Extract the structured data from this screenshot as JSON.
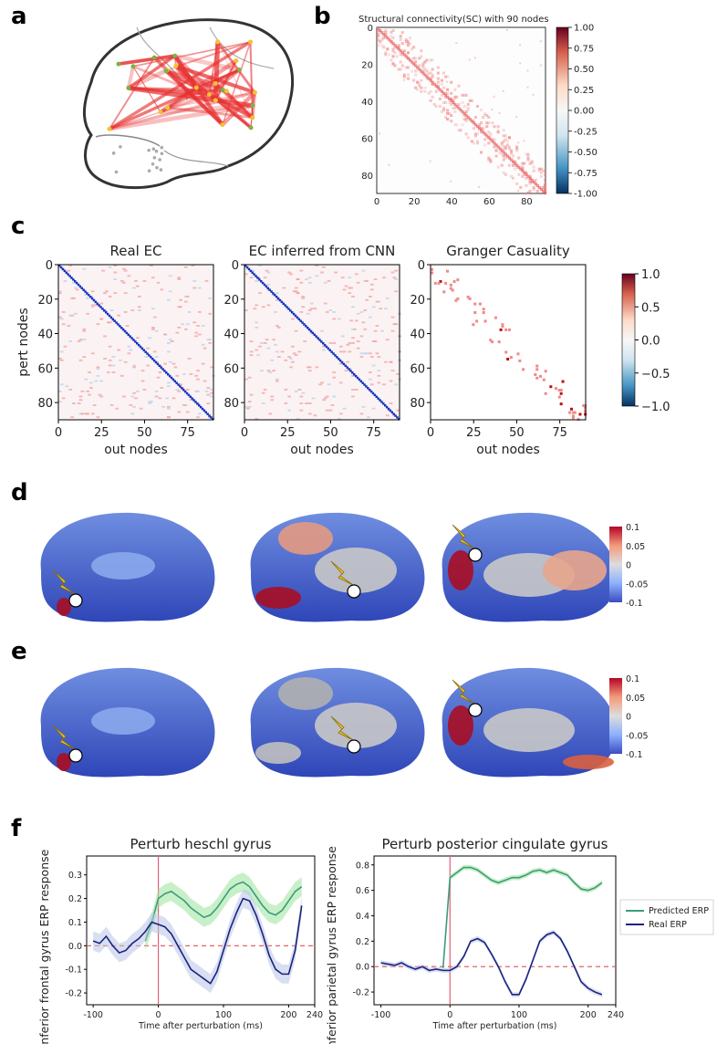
{
  "panels": {
    "a": "a",
    "b": "b",
    "c": "c",
    "d": "d",
    "e": "e",
    "f": "f"
  },
  "panel_b": {
    "title": "Structural connectivity(SC) with 90 nodes",
    "ticks": [
      "0",
      "20",
      "40",
      "60",
      "80"
    ],
    "colorbar_ticks": [
      "1.00",
      "0.75",
      "0.50",
      "0.25",
      "0.00",
      "-0.25",
      "-0.50",
      "-0.75",
      "-1.00"
    ]
  },
  "panel_c": {
    "titles": [
      "Real EC",
      "EC inferred from CNN",
      "Granger Casuality"
    ],
    "ylabel": "pert nodes",
    "xlabel": "out nodes",
    "yticks": [
      "0",
      "20",
      "40",
      "60",
      "80"
    ],
    "xticks": [
      "0",
      "25",
      "50",
      "75"
    ],
    "colorbar_ticks": [
      "1.0",
      "0.5",
      "0.0",
      "−0.5",
      "−1.0"
    ]
  },
  "panel_de": {
    "colorbar_ticks": [
      "0.1",
      "0.05",
      "0",
      "-0.05",
      "-0.1"
    ]
  },
  "colors": {
    "predicted": "#3c9c7a",
    "predicted_band": "#9be39b",
    "real": "#1a237e",
    "real_band": "#b9c4e8",
    "perturb_line": "#e06078",
    "zero_line": "#e05050"
  },
  "chart_data": [
    {
      "type": "line",
      "title": "Perturb heschl gyrus",
      "xlabel": "Time after perturbation (ms)",
      "ylabel": "Inferior frontal gyrus ERP response",
      "xlim": [
        -110,
        240
      ],
      "ylim": [
        -0.25,
        0.38
      ],
      "xticks": [
        -100,
        0,
        100,
        200,
        240
      ],
      "xtick_labels": [
        "-100",
        "0",
        "100",
        "200",
        "240"
      ],
      "yticks": [
        -0.2,
        -0.1,
        0.0,
        0.1,
        0.2,
        0.3
      ],
      "ytick_labels": [
        "-0.2",
        "-0.1",
        "0.0",
        "0.1",
        "0.2",
        "0.3"
      ],
      "x": [
        -100,
        -90,
        -80,
        -70,
        -60,
        -50,
        -40,
        -30,
        -20,
        -10,
        0,
        10,
        20,
        30,
        40,
        50,
        60,
        70,
        80,
        90,
        100,
        110,
        120,
        130,
        140,
        150,
        160,
        170,
        180,
        190,
        200,
        210,
        220
      ],
      "series": [
        {
          "name": "Predicted ERP",
          "values": [
            null,
            null,
            null,
            null,
            null,
            null,
            null,
            null,
            0.02,
            0.1,
            0.2,
            0.22,
            0.23,
            0.21,
            0.19,
            0.16,
            0.14,
            0.12,
            0.13,
            0.16,
            0.2,
            0.24,
            0.26,
            0.27,
            0.25,
            0.21,
            0.17,
            0.14,
            0.13,
            0.15,
            0.19,
            0.23,
            0.25
          ],
          "band": 0.04
        },
        {
          "name": "Real ERP",
          "values": [
            0.02,
            0.01,
            0.04,
            0.0,
            -0.03,
            -0.02,
            0.01,
            0.03,
            0.06,
            0.1,
            0.09,
            0.08,
            0.05,
            0.0,
            -0.05,
            -0.1,
            -0.12,
            -0.14,
            -0.16,
            -0.11,
            -0.02,
            0.07,
            0.14,
            0.2,
            0.19,
            0.13,
            0.05,
            -0.04,
            -0.1,
            -0.12,
            -0.12,
            -0.02,
            0.17
          ],
          "band": 0.04
        }
      ],
      "zero_line": 0.0,
      "perturbation_at": 0
    },
    {
      "type": "line",
      "title": "Perturb posterior cingulate gyrus",
      "xlabel": "Time after perturbation (ms)",
      "ylabel": "Inferior parietal gyrus ERP response",
      "xlim": [
        -110,
        240
      ],
      "ylim": [
        -0.3,
        0.87
      ],
      "xticks": [
        -100,
        0,
        100,
        200,
        240
      ],
      "xtick_labels": [
        "-100",
        "0",
        "100",
        "200",
        "240"
      ],
      "yticks": [
        -0.2,
        0.0,
        0.2,
        0.4,
        0.6,
        0.8
      ],
      "ytick_labels": [
        "-0.2",
        "0.0",
        "0.2",
        "0.4",
        "0.6",
        "0.8"
      ],
      "legend": [
        "Predicted ERP",
        "Real ERP"
      ],
      "x": [
        -100,
        -90,
        -80,
        -70,
        -60,
        -50,
        -40,
        -30,
        -20,
        -10,
        0,
        10,
        20,
        30,
        40,
        50,
        60,
        70,
        80,
        90,
        100,
        110,
        120,
        130,
        140,
        150,
        160,
        170,
        180,
        190,
        200,
        210,
        220
      ],
      "series": [
        {
          "name": "Predicted ERP",
          "values": [
            null,
            null,
            null,
            null,
            null,
            null,
            null,
            null,
            null,
            -0.01,
            0.7,
            0.74,
            0.78,
            0.78,
            0.76,
            0.72,
            0.68,
            0.66,
            0.68,
            0.7,
            0.7,
            0.72,
            0.75,
            0.76,
            0.74,
            0.76,
            0.74,
            0.72,
            0.66,
            0.61,
            0.6,
            0.62,
            0.66
          ],
          "band": 0.02
        },
        {
          "name": "Real ERP",
          "values": [
            0.03,
            0.02,
            0.01,
            0.03,
            0.0,
            -0.02,
            0.0,
            -0.03,
            -0.02,
            -0.03,
            -0.03,
            0.0,
            0.08,
            0.2,
            0.22,
            0.19,
            0.1,
            0.0,
            -0.12,
            -0.22,
            -0.22,
            -0.1,
            0.05,
            0.2,
            0.25,
            0.27,
            0.22,
            0.12,
            0.0,
            -0.12,
            -0.17,
            -0.2,
            -0.22
          ],
          "band": 0.02
        }
      ],
      "zero_line": 0.0,
      "perturbation_at": 0
    }
  ]
}
